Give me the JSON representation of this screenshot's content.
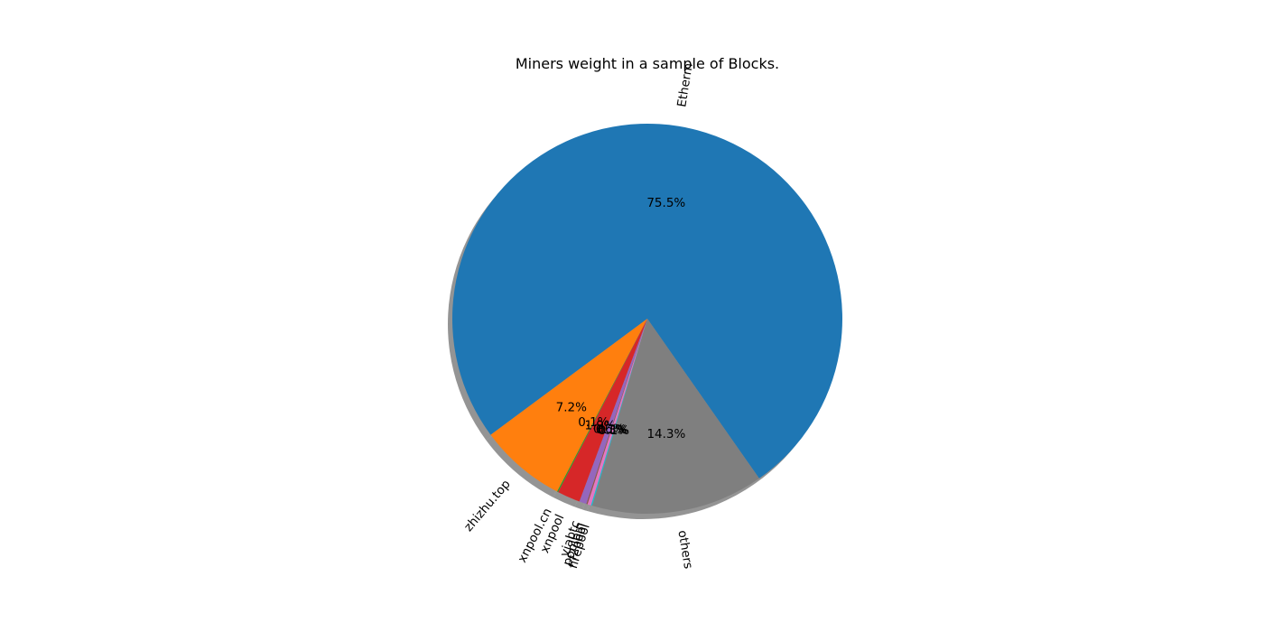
{
  "chart_data": {
    "type": "pie",
    "title": "Miners weight in a sample of Blocks.",
    "slices": [
      {
        "label": "Etherm",
        "percent": 75.5,
        "pct_label": "75.5%",
        "color": "#1f77b4"
      },
      {
        "label": "zhizhu.top",
        "percent": 7.2,
        "pct_label": "7.2%",
        "color": "#ff7f0e"
      },
      {
        "label": "xnpool.cn",
        "percent": 0.1,
        "pct_label": "0.1%",
        "color": "#2ca02c"
      },
      {
        "label": "xnpool",
        "percent": 1.9,
        "pct_label": "1.9%",
        "color": "#d62728"
      },
      {
        "label": "viabtc",
        "percent": 0.6,
        "pct_label": "0.6%",
        "color": "#9467bd"
      },
      {
        "label": "poolbin",
        "percent": 0.1,
        "pct_label": "0.1%",
        "color": "#8c564b"
      },
      {
        "label": "f2pool",
        "percent": 0.3,
        "pct_label": "0.3%",
        "color": "#e377c2"
      },
      {
        "label": "firepool",
        "percent": 0.1,
        "pct_label": "0.1%",
        "color": "#17becf"
      },
      {
        "label": "others",
        "percent": 14.3,
        "pct_label": "14.3%",
        "color": "#7f7f7f"
      }
    ],
    "start_angle_deg": -55,
    "direction": "counterclockwise",
    "shadow": true,
    "rotated_labels": true,
    "legend": "none"
  }
}
